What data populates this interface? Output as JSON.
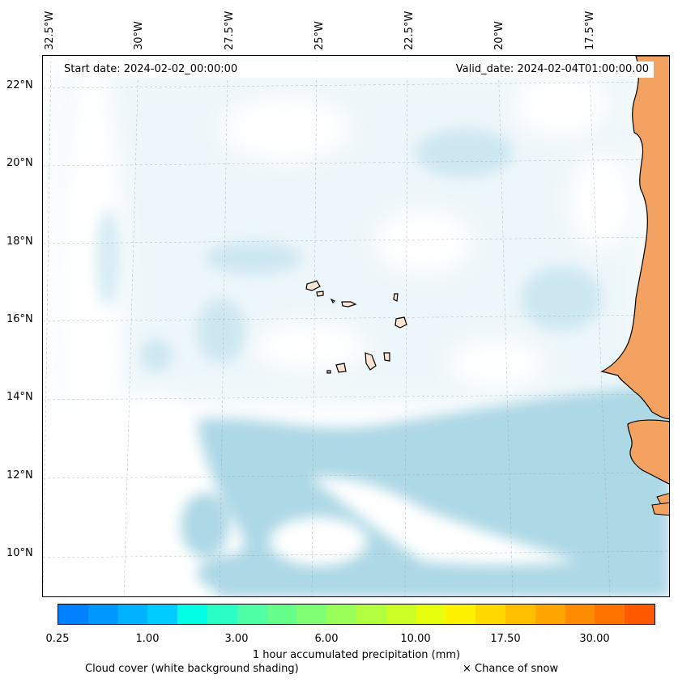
{
  "header": {
    "start_date": "Start date: 2024-02-02_00:00:00",
    "valid_date": "Valid_date: 2024-02-04T01:00:00.00"
  },
  "axes": {
    "longitude_labels": [
      "32.5°W",
      "30°W",
      "27.5°W",
      "25°W",
      "22.5°W",
      "20°W",
      "17.5°W"
    ],
    "latitude_labels": [
      "22°N",
      "20°N",
      "18°N",
      "16°N",
      "14°N",
      "12°N",
      "10°N"
    ]
  },
  "colorbar": {
    "colors": [
      "#0080ff",
      "#0099ff",
      "#00b2ff",
      "#00ccff",
      "#00ffe5",
      "#2bffc6",
      "#4fffa6",
      "#66ff8c",
      "#7fff73",
      "#99ff59",
      "#b2ff40",
      "#ccff26",
      "#e5ff0d",
      "#fff200",
      "#ffd900",
      "#ffbf00",
      "#ffa600",
      "#ff8c00",
      "#ff7300",
      "#ff5900"
    ],
    "tick_labels": [
      "0.25",
      "1.00",
      "3.00",
      "6.00",
      "10.00",
      "17.50",
      "30.00"
    ],
    "label": "1 hour accumulated precipitation (mm)"
  },
  "legend": {
    "cloud_cover": "Cloud cover (white background shading)",
    "snow": "× Chance of snow"
  },
  "colors": {
    "cloud": "#add8e6",
    "land": "#f4a261",
    "island": "#fce4d0"
  }
}
